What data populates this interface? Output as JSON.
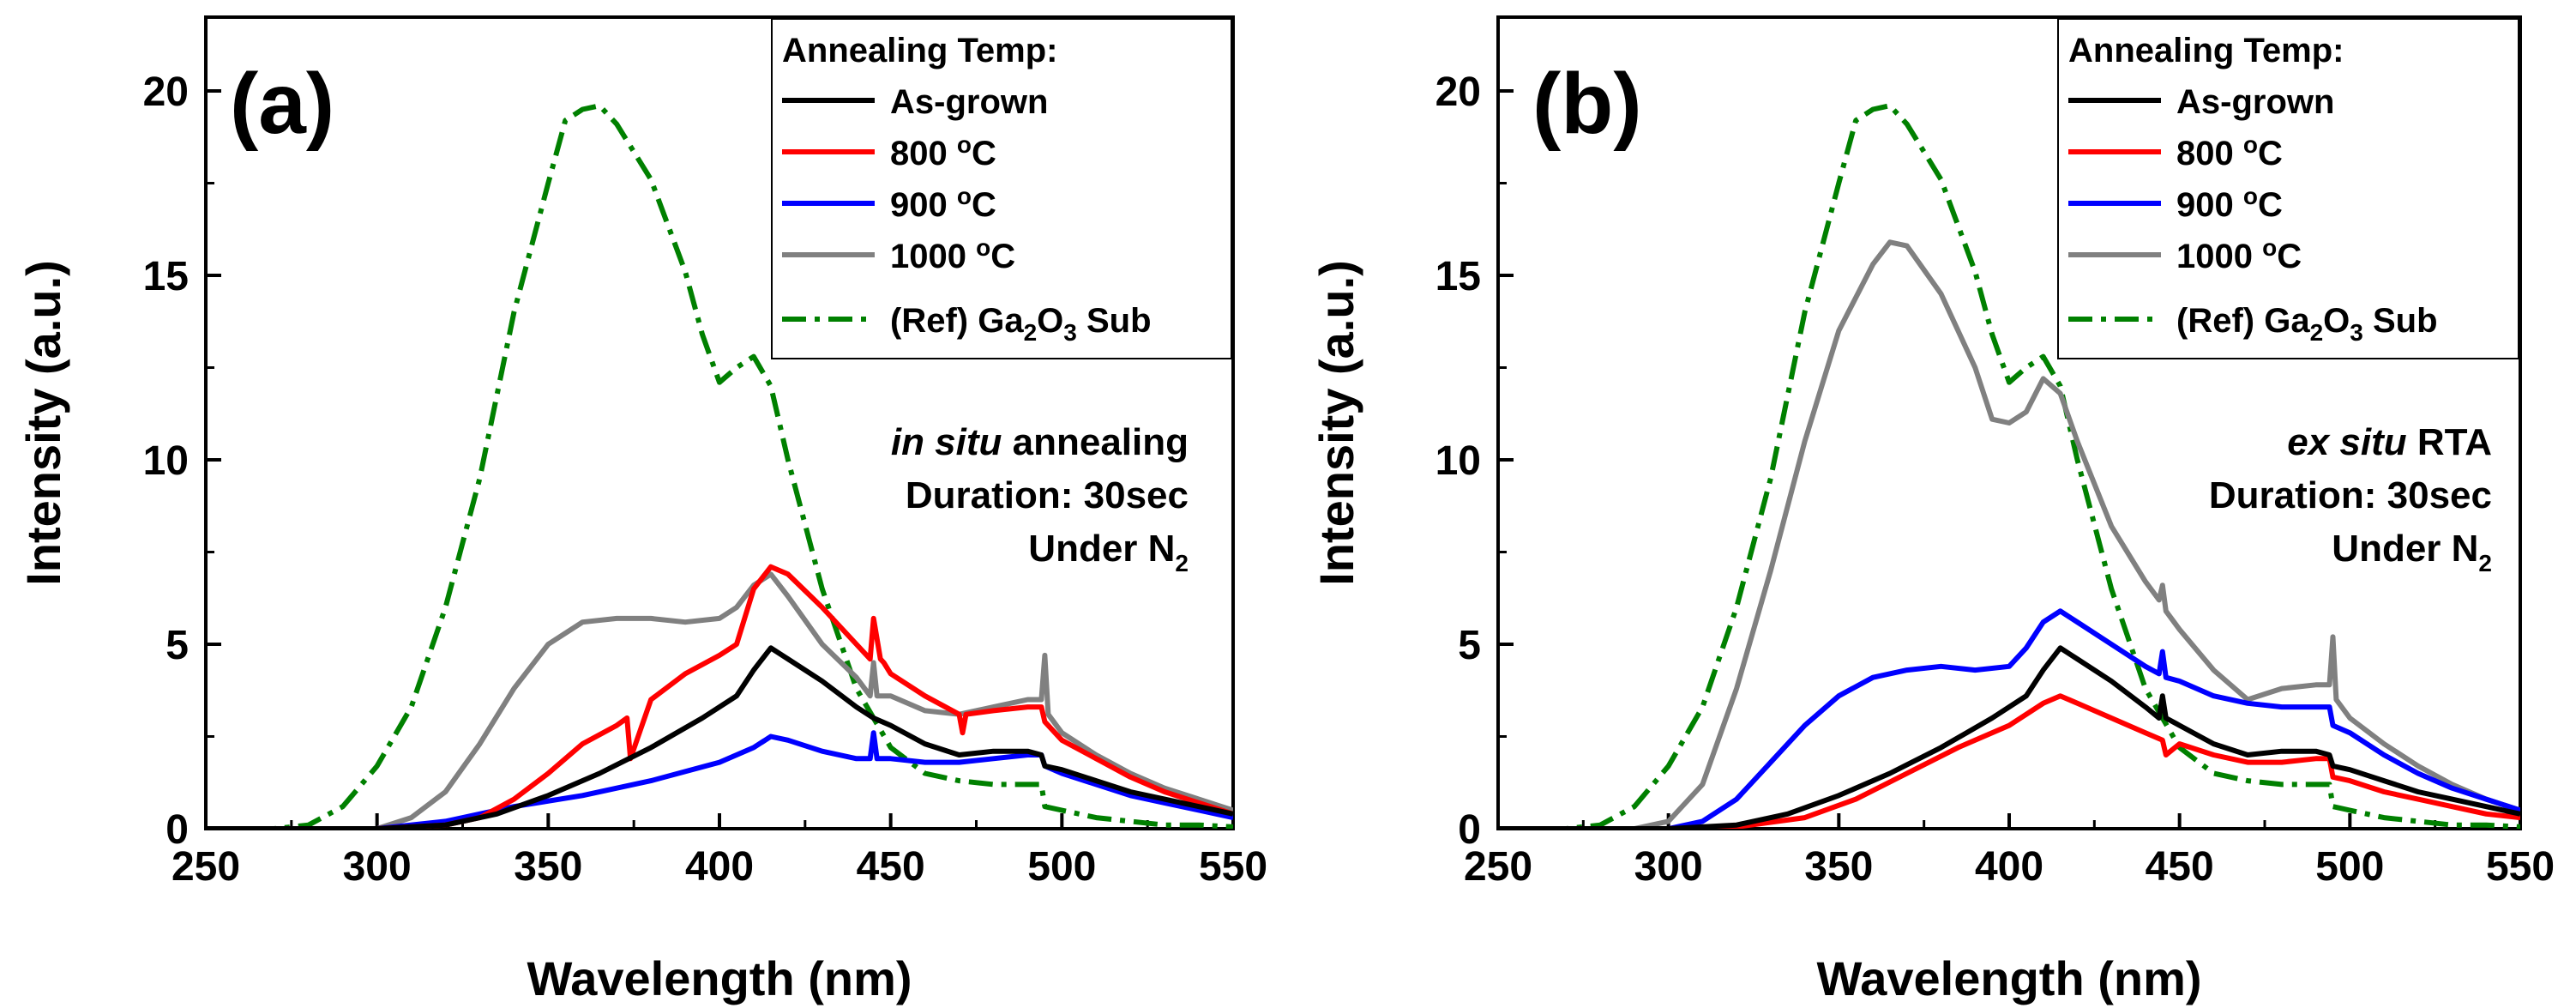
{
  "chart_data": [
    {
      "type": "line",
      "panel_label": "(a)",
      "xlabel": "Wavelength (nm)",
      "ylabel": "Intensity (a.u.)",
      "xlim": [
        250,
        550
      ],
      "ylim": [
        0,
        22
      ],
      "xticks": [
        250,
        300,
        350,
        400,
        450,
        500,
        550
      ],
      "yticks": [
        0,
        5,
        10,
        15,
        20
      ],
      "legend_title": "Annealing Temp:",
      "legend_position": "top-right",
      "annotation": {
        "line1_italic": "in situ",
        "line1_rest": " annealing",
        "line2": "Duration: 30sec",
        "line3_main": "Under N",
        "line3_sub": "2"
      },
      "series": [
        {
          "name": "As-grown",
          "label": "As-grown",
          "label_sup": "",
          "label_suffix": "",
          "color": "#000000",
          "dash": "solid",
          "x": [
            250,
            300,
            320,
            335,
            350,
            365,
            380,
            395,
            405,
            410,
            415,
            420,
            430,
            440,
            445,
            450,
            460,
            470,
            480,
            490,
            494,
            495,
            500,
            510,
            520,
            530,
            540,
            550
          ],
          "y": [
            0,
            0,
            0.1,
            0.4,
            0.9,
            1.5,
            2.2,
            3.0,
            3.6,
            4.3,
            4.9,
            4.6,
            4.0,
            3.3,
            3.0,
            2.8,
            2.3,
            2.0,
            2.1,
            2.1,
            2.0,
            1.7,
            1.6,
            1.3,
            1.0,
            0.8,
            0.6,
            0.4
          ]
        },
        {
          "name": "800 °C",
          "label": "800 ",
          "label_sup": "o",
          "label_suffix": "C",
          "color": "#ff0000",
          "dash": "solid",
          "x": [
            250,
            300,
            320,
            330,
            340,
            350,
            360,
            370,
            373,
            374,
            380,
            390,
            400,
            405,
            410,
            415,
            420,
            430,
            440,
            444,
            445,
            447,
            448,
            450,
            460,
            470,
            471,
            472,
            480,
            490,
            494,
            495,
            500,
            510,
            520,
            530,
            540,
            550
          ],
          "y": [
            0,
            0,
            0.1,
            0.3,
            0.8,
            1.5,
            2.3,
            2.8,
            3.0,
            1.9,
            3.5,
            4.2,
            4.7,
            5.0,
            6.5,
            7.1,
            6.9,
            6.0,
            5.0,
            4.6,
            5.7,
            4.6,
            4.5,
            4.2,
            3.6,
            3.1,
            2.6,
            3.1,
            3.2,
            3.3,
            3.3,
            2.9,
            2.4,
            1.9,
            1.4,
            1.0,
            0.7,
            0.4
          ]
        },
        {
          "name": "900 °C",
          "label": "900 ",
          "label_sup": "o",
          "label_suffix": "C",
          "color": "#0000ff",
          "dash": "solid",
          "x": [
            250,
            300,
            320,
            340,
            360,
            380,
            400,
            410,
            415,
            420,
            430,
            440,
            444,
            445,
            446,
            450,
            460,
            470,
            480,
            490,
            494,
            495,
            500,
            510,
            520,
            530,
            540,
            550
          ],
          "y": [
            0,
            0,
            0.2,
            0.6,
            0.9,
            1.3,
            1.8,
            2.2,
            2.5,
            2.4,
            2.1,
            1.9,
            1.9,
            2.6,
            1.9,
            1.9,
            1.8,
            1.8,
            1.9,
            2.0,
            2.0,
            1.7,
            1.5,
            1.2,
            0.9,
            0.7,
            0.5,
            0.3
          ]
        },
        {
          "name": "1000 °C",
          "label": "1000 ",
          "label_sup": "o",
          "label_suffix": "C",
          "color": "#808080",
          "dash": "solid",
          "x": [
            250,
            300,
            310,
            320,
            330,
            340,
            350,
            360,
            370,
            380,
            390,
            400,
            405,
            410,
            415,
            420,
            430,
            440,
            444,
            445,
            446,
            450,
            460,
            470,
            480,
            490,
            494,
            495,
            496,
            500,
            510,
            520,
            530,
            540,
            550
          ],
          "y": [
            0,
            0,
            0.3,
            1.0,
            2.3,
            3.8,
            5.0,
            5.6,
            5.7,
            5.7,
            5.6,
            5.7,
            6.0,
            6.6,
            6.9,
            6.3,
            5.0,
            4.1,
            3.6,
            4.5,
            3.6,
            3.6,
            3.2,
            3.1,
            3.3,
            3.5,
            3.5,
            4.7,
            3.1,
            2.6,
            2.0,
            1.5,
            1.1,
            0.8,
            0.5
          ]
        },
        {
          "name": "(Ref) Ga2O3 Sub",
          "label": "(Ref) Ga",
          "label_sub1": "2",
          "label_mid": "O",
          "label_sub2": "3",
          "label_end": " Sub",
          "color": "#008000",
          "dash": "dashdot",
          "x": [
            250,
            270,
            280,
            290,
            300,
            310,
            320,
            330,
            340,
            350,
            355,
            360,
            365,
            370,
            380,
            390,
            395,
            400,
            405,
            410,
            415,
            420,
            430,
            440,
            450,
            460,
            470,
            480,
            490,
            494,
            495,
            500,
            510,
            520,
            530,
            540,
            550
          ],
          "y": [
            0,
            0,
            0.1,
            0.6,
            1.7,
            3.3,
            6.0,
            9.5,
            14.0,
            17.5,
            19.2,
            19.5,
            19.6,
            19.1,
            17.6,
            15.1,
            13.4,
            12.1,
            12.5,
            12.8,
            12.0,
            10.0,
            6.5,
            3.8,
            2.2,
            1.5,
            1.3,
            1.2,
            1.2,
            1.2,
            0.6,
            0.5,
            0.3,
            0.2,
            0.1,
            0.1,
            0.05
          ]
        }
      ]
    },
    {
      "type": "line",
      "panel_label": "(b)",
      "xlabel": "Wavelength (nm)",
      "ylabel": "Intensity (a.u.)",
      "xlim": [
        250,
        550
      ],
      "ylim": [
        0,
        22
      ],
      "xticks": [
        250,
        300,
        350,
        400,
        450,
        500,
        550
      ],
      "yticks": [
        0,
        5,
        10,
        15,
        20
      ],
      "legend_title": "Annealing Temp:",
      "legend_position": "top-right",
      "annotation": {
        "line1_italic": "ex situ",
        "line1_rest": " RTA",
        "line2": "Duration: 30sec",
        "line3_main": "Under N",
        "line3_sub": "2"
      },
      "series": [
        {
          "name": "As-grown",
          "label": "As-grown",
          "label_sup": "",
          "label_suffix": "",
          "color": "#000000",
          "dash": "solid",
          "x": [
            250,
            300,
            320,
            335,
            350,
            365,
            380,
            395,
            405,
            410,
            415,
            420,
            430,
            440,
            444,
            445,
            446,
            450,
            460,
            470,
            480,
            490,
            494,
            495,
            500,
            510,
            520,
            530,
            540,
            550
          ],
          "y": [
            0,
            0,
            0.1,
            0.4,
            0.9,
            1.5,
            2.2,
            3.0,
            3.6,
            4.3,
            4.9,
            4.6,
            4.0,
            3.3,
            3.0,
            3.6,
            3.0,
            2.8,
            2.3,
            2.0,
            2.1,
            2.1,
            2.0,
            1.7,
            1.6,
            1.3,
            1.0,
            0.8,
            0.6,
            0.4
          ]
        },
        {
          "name": "800 °C",
          "label": "800 ",
          "label_sup": "o",
          "label_suffix": "C",
          "color": "#ff0000",
          "dash": "solid",
          "x": [
            250,
            300,
            320,
            340,
            355,
            370,
            385,
            400,
            410,
            415,
            420,
            430,
            440,
            445,
            446,
            450,
            460,
            470,
            480,
            490,
            494,
            495,
            500,
            510,
            520,
            530,
            540,
            550
          ],
          "y": [
            0,
            0,
            0.05,
            0.3,
            0.8,
            1.5,
            2.2,
            2.8,
            3.4,
            3.6,
            3.4,
            3.0,
            2.6,
            2.4,
            2.0,
            2.3,
            2.0,
            1.8,
            1.8,
            1.9,
            1.9,
            1.4,
            1.3,
            1.0,
            0.8,
            0.6,
            0.4,
            0.3
          ]
        },
        {
          "name": "900 °C",
          "label": "900 ",
          "label_sup": "o",
          "label_suffix": "C",
          "color": "#0000ff",
          "dash": "solid",
          "x": [
            250,
            300,
            310,
            320,
            330,
            340,
            350,
            360,
            370,
            380,
            390,
            400,
            405,
            410,
            415,
            420,
            430,
            440,
            444,
            445,
            446,
            450,
            460,
            470,
            480,
            490,
            494,
            495,
            500,
            510,
            520,
            530,
            540,
            550
          ],
          "y": [
            0,
            0,
            0.2,
            0.8,
            1.8,
            2.8,
            3.6,
            4.1,
            4.3,
            4.4,
            4.3,
            4.4,
            4.9,
            5.6,
            5.9,
            5.6,
            5.0,
            4.4,
            4.2,
            4.8,
            4.1,
            4.0,
            3.6,
            3.4,
            3.3,
            3.3,
            3.3,
            2.8,
            2.6,
            2.0,
            1.5,
            1.1,
            0.8,
            0.5
          ]
        },
        {
          "name": "1000 °C",
          "label": "1000 ",
          "label_sup": "o",
          "label_suffix": "C",
          "color": "#808080",
          "dash": "solid",
          "x": [
            250,
            290,
            300,
            310,
            320,
            330,
            340,
            350,
            360,
            365,
            370,
            380,
            390,
            395,
            400,
            405,
            410,
            415,
            420,
            430,
            440,
            444,
            445,
            446,
            450,
            460,
            470,
            480,
            490,
            494,
            495,
            496,
            500,
            510,
            520,
            530,
            540,
            550
          ],
          "y": [
            0,
            0,
            0.2,
            1.2,
            3.8,
            7.0,
            10.5,
            13.5,
            15.3,
            15.9,
            15.8,
            14.5,
            12.5,
            11.1,
            11.0,
            11.3,
            12.2,
            11.8,
            10.5,
            8.2,
            6.7,
            6.2,
            6.6,
            5.9,
            5.4,
            4.3,
            3.5,
            3.8,
            3.9,
            3.9,
            5.2,
            3.5,
            3.0,
            2.3,
            1.7,
            1.2,
            0.8,
            0.5
          ]
        },
        {
          "name": "(Ref) Ga2O3 Sub",
          "label": "(Ref) Ga",
          "label_sub1": "2",
          "label_mid": "O",
          "label_sub2": "3",
          "label_end": " Sub",
          "color": "#008000",
          "dash": "dashdot",
          "x": [
            250,
            270,
            280,
            290,
            300,
            310,
            320,
            330,
            340,
            350,
            355,
            360,
            365,
            370,
            380,
            390,
            395,
            400,
            405,
            410,
            415,
            420,
            430,
            440,
            450,
            460,
            470,
            480,
            490,
            494,
            495,
            500,
            510,
            520,
            530,
            540,
            550
          ],
          "y": [
            0,
            0,
            0.1,
            0.6,
            1.7,
            3.3,
            6.0,
            9.5,
            14.0,
            17.5,
            19.2,
            19.5,
            19.6,
            19.1,
            17.6,
            15.1,
            13.4,
            12.1,
            12.5,
            12.8,
            12.0,
            10.0,
            6.5,
            3.8,
            2.2,
            1.5,
            1.3,
            1.2,
            1.2,
            1.2,
            0.6,
            0.5,
            0.3,
            0.2,
            0.1,
            0.1,
            0.05
          ]
        }
      ]
    }
  ]
}
